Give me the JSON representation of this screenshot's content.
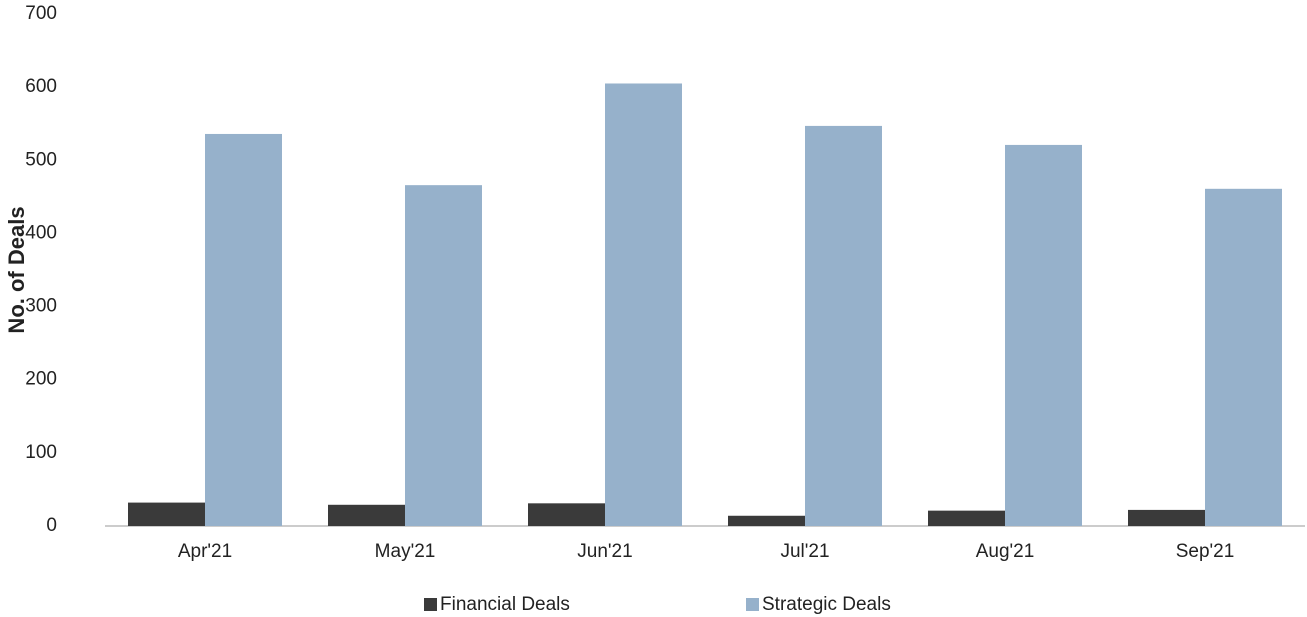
{
  "chart_data": {
    "type": "bar",
    "y_label": "No. of Deals",
    "categories": [
      "Apr'21",
      "May'21",
      "Jun'21",
      "Jul'21",
      "Aug'21",
      "Sep'21"
    ],
    "series": [
      {
        "name": "Financial Deals",
        "color": "#3a3a3a",
        "values": [
          32,
          29,
          31,
          14,
          21,
          22
        ]
      },
      {
        "name": "Strategic Deals",
        "color": "#96b1cb",
        "values": [
          536,
          466,
          605,
          547,
          521,
          461
        ]
      }
    ],
    "ylim": [
      0,
      700
    ],
    "yticks": [
      0,
      100,
      200,
      300,
      400,
      500,
      600,
      700
    ],
    "grid": false,
    "legend": "bottom"
  }
}
